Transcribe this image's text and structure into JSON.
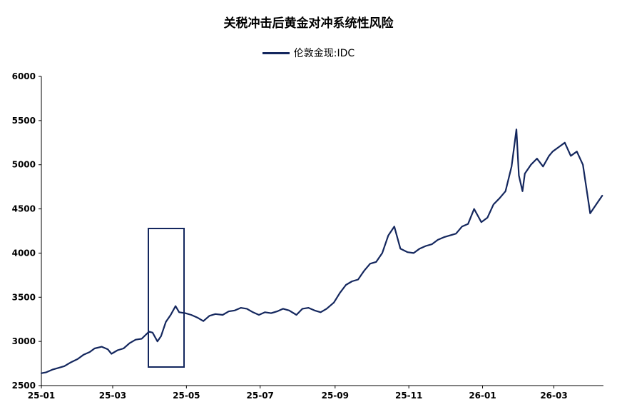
{
  "chart_data": {
    "type": "line",
    "title": "关税冲击后黄金对冲系统性风险",
    "xlabel": "",
    "ylabel": "",
    "ylim": [
      2500,
      6000
    ],
    "yticks": [
      2500,
      3000,
      3500,
      4000,
      4500,
      5000,
      5500,
      6000
    ],
    "xticks": [
      "25-01",
      "25-03",
      "25-05",
      "25-07",
      "25-09",
      "25-11",
      "26-01",
      "26-03"
    ],
    "legend_position": "top-center",
    "grid": false,
    "line_color": "#14275e",
    "series": [
      {
        "name": "伦敦金现:IDC",
        "x": [
          "2025-01-01",
          "2025-01-05",
          "2025-01-10",
          "2025-01-15",
          "2025-01-20",
          "2025-01-25",
          "2025-01-31",
          "2025-02-05",
          "2025-02-10",
          "2025-02-14",
          "2025-02-20",
          "2025-02-25",
          "2025-02-28",
          "2025-03-05",
          "2025-03-10",
          "2025-03-15",
          "2025-03-20",
          "2025-03-25",
          "2025-03-31",
          "2025-04-03",
          "2025-04-07",
          "2025-04-10",
          "2025-04-14",
          "2025-04-18",
          "2025-04-22",
          "2025-04-25",
          "2025-04-30",
          "2025-05-05",
          "2025-05-10",
          "2025-05-15",
          "2025-05-20",
          "2025-05-25",
          "2025-05-31",
          "2025-06-05",
          "2025-06-10",
          "2025-06-15",
          "2025-06-20",
          "2025-06-25",
          "2025-06-30",
          "2025-07-05",
          "2025-07-10",
          "2025-07-15",
          "2025-07-20",
          "2025-07-25",
          "2025-07-31",
          "2025-08-05",
          "2025-08-10",
          "2025-08-15",
          "2025-08-20",
          "2025-08-25",
          "2025-08-31",
          "2025-09-05",
          "2025-09-10",
          "2025-09-15",
          "2025-09-20",
          "2025-09-25",
          "2025-09-30",
          "2025-10-05",
          "2025-10-10",
          "2025-10-15",
          "2025-10-20",
          "2025-10-25",
          "2025-10-31",
          "2025-11-05",
          "2025-11-10",
          "2025-11-15",
          "2025-11-20",
          "2025-11-25",
          "2025-11-30",
          "2025-12-05",
          "2025-12-10",
          "2025-12-15",
          "2025-12-20",
          "2025-12-25",
          "2025-12-31",
          "2026-01-05",
          "2026-01-10",
          "2026-01-15",
          "2026-01-20",
          "2026-01-25",
          "2026-01-29",
          "2026-01-31",
          "2026-02-03",
          "2026-02-05",
          "2026-02-10",
          "2026-02-15",
          "2026-02-20",
          "2026-02-25",
          "2026-02-28",
          "2026-03-05",
          "2026-03-10",
          "2026-03-15",
          "2026-03-20",
          "2026-03-25",
          "2026-03-31",
          "2026-04-05",
          "2026-04-10"
        ],
        "values": [
          2640,
          2650,
          2680,
          2700,
          2720,
          2760,
          2800,
          2850,
          2880,
          2920,
          2940,
          2910,
          2860,
          2900,
          2920,
          2980,
          3020,
          3030,
          3110,
          3100,
          3000,
          3060,
          3220,
          3300,
          3400,
          3330,
          3320,
          3300,
          3270,
          3230,
          3290,
          3310,
          3300,
          3340,
          3350,
          3380,
          3370,
          3330,
          3300,
          3330,
          3320,
          3340,
          3370,
          3350,
          3300,
          3370,
          3380,
          3350,
          3330,
          3370,
          3440,
          3550,
          3640,
          3680,
          3700,
          3800,
          3880,
          3900,
          4000,
          4200,
          4300,
          4050,
          4010,
          4000,
          4050,
          4080,
          4100,
          4150,
          4180,
          4200,
          4220,
          4300,
          4330,
          4500,
          4350,
          4400,
          4550,
          4620,
          4700,
          4980,
          5400,
          4880,
          4700,
          4900,
          5000,
          5070,
          4980,
          5100,
          5150,
          5200,
          5250,
          5100,
          5150,
          5000,
          4450,
          4550,
          4650
        ]
      }
    ]
  }
}
